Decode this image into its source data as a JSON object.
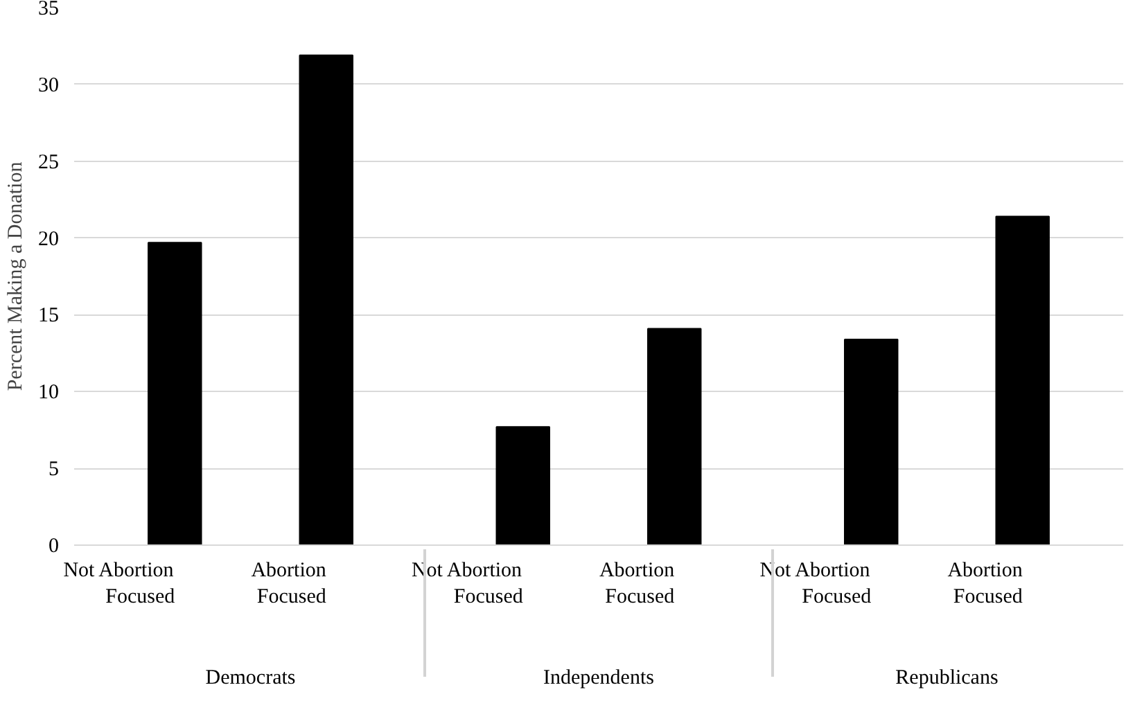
{
  "chart_data": {
    "type": "bar",
    "ylabel": "Percent Making a Donation",
    "categories": [
      "Not Abortion Focused",
      "Abortion Focused",
      "Not Abortion Focused",
      "Abortion Focused",
      "Not Abortion Focused",
      "Abortion Focused"
    ],
    "annotations": [
      "Democrats",
      "Independents",
      "Republicans"
    ],
    "values": [
      19.7,
      31.9,
      7.7,
      14.1,
      13.4,
      21.4
    ],
    "color": "#000000",
    "ylim": [
      0,
      35
    ],
    "yticks": [
      0,
      5,
      10,
      15,
      20,
      25,
      30,
      35
    ],
    "grid": "y"
  }
}
